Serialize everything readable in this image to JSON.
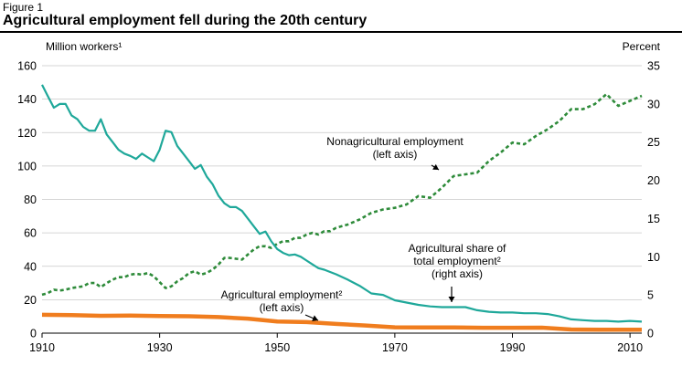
{
  "figure": {
    "label": "Figure 1",
    "title": "Agricultural employment fell during the 20th century"
  },
  "chart_data": {
    "type": "line",
    "title": "Agricultural employment fell during the 20th century",
    "ylabel_left": "Million workers¹",
    "ylabel_right": "Percent",
    "xlim": [
      1910,
      2012
    ],
    "ylim_left": [
      0,
      160
    ],
    "ylim_right": [
      0,
      35
    ],
    "x_ticks": [
      1910,
      1930,
      1950,
      1970,
      1990,
      2010
    ],
    "y_ticks_left": [
      0,
      20,
      40,
      60,
      80,
      100,
      120,
      140,
      160
    ],
    "y_ticks_right": [
      0,
      5,
      10,
      15,
      20,
      25,
      30,
      35
    ],
    "grid": "horizontal",
    "series": [
      {
        "name": "Nonagricultural employment (left axis)",
        "label_lines": [
          "Nonagricultural employment",
          "(left axis)"
        ],
        "axis": "left",
        "color": "#2e8b3a",
        "style": "dotted",
        "x": [
          1910,
          1911,
          1912,
          1913,
          1914,
          1915,
          1916,
          1917,
          1918,
          1919,
          1920,
          1921,
          1922,
          1923,
          1924,
          1925,
          1926,
          1927,
          1928,
          1929,
          1930,
          1931,
          1932,
          1933,
          1934,
          1935,
          1936,
          1937,
          1938,
          1939,
          1940,
          1941,
          1942,
          1943,
          1944,
          1945,
          1946,
          1947,
          1948,
          1949,
          1950,
          1951,
          1952,
          1953,
          1954,
          1955,
          1956,
          1957,
          1958,
          1959,
          1960,
          1962,
          1964,
          1966,
          1968,
          1970,
          1972,
          1974,
          1976,
          1978,
          1980,
          1982,
          1984,
          1986,
          1988,
          1990,
          1992,
          1994,
          1996,
          1998,
          2000,
          2002,
          2004,
          2006,
          2008,
          2010,
          2012
        ],
        "values": [
          23,
          24,
          26,
          25.5,
          26,
          27,
          27.5,
          28,
          30,
          30,
          27.5,
          30,
          32,
          33.5,
          33.5,
          35,
          35.5,
          35,
          36,
          34,
          30.5,
          27,
          28,
          31,
          33,
          36,
          37,
          35,
          36,
          38,
          41,
          45,
          45,
          44.5,
          44,
          47,
          50,
          52,
          52,
          51,
          53.5,
          55,
          55,
          57,
          57,
          59,
          60,
          59,
          61,
          61,
          63,
          65,
          68,
          72,
          74,
          75,
          77,
          82,
          81,
          87,
          94,
          95,
          96,
          103,
          108,
          114,
          113,
          118,
          122,
          127,
          134,
          134,
          137,
          143,
          136,
          139,
          142
        ]
      },
      {
        "name": "Agricultural share of total employment² (right axis)",
        "label_lines": [
          "Agricultural share of",
          "total employment²",
          "(right axis)"
        ],
        "axis": "right",
        "color": "#1fa89a",
        "style": "solid",
        "x": [
          1910,
          1911,
          1912,
          1913,
          1914,
          1915,
          1916,
          1917,
          1918,
          1919,
          1920,
          1921,
          1922,
          1923,
          1924,
          1925,
          1926,
          1927,
          1928,
          1929,
          1930,
          1931,
          1932,
          1933,
          1934,
          1935,
          1936,
          1937,
          1938,
          1939,
          1940,
          1941,
          1942,
          1943,
          1944,
          1945,
          1946,
          1947,
          1948,
          1949,
          1950,
          1951,
          1952,
          1953,
          1954,
          1955,
          1956,
          1957,
          1958,
          1959,
          1960,
          1962,
          1964,
          1966,
          1968,
          1970,
          1972,
          1974,
          1976,
          1978,
          1980,
          1982,
          1984,
          1986,
          1988,
          1990,
          1992,
          1994,
          1996,
          1998,
          2000,
          2002,
          2004,
          2006,
          2008,
          2010,
          2012
        ],
        "values": [
          32.5,
          31,
          29.5,
          30,
          30,
          28.5,
          28,
          27,
          26.5,
          26.5,
          28,
          26,
          25,
          24,
          23.5,
          23.2,
          22.8,
          23.5,
          23,
          22.5,
          24,
          26.5,
          26.3,
          24.5,
          23.5,
          22.5,
          21.5,
          22,
          20.5,
          19.5,
          18,
          17,
          16.5,
          16.5,
          16,
          15,
          14,
          13,
          13.3,
          12,
          11,
          10.5,
          10.2,
          10.3,
          10,
          9.5,
          9,
          8.5,
          8.3,
          8,
          7.7,
          7,
          6.2,
          5.2,
          5,
          4.3,
          4,
          3.7,
          3.5,
          3.4,
          3.4,
          3.4,
          3,
          2.8,
          2.7,
          2.7,
          2.6,
          2.6,
          2.5,
          2.2,
          1.8,
          1.7,
          1.6,
          1.6,
          1.5,
          1.6,
          1.5
        ]
      },
      {
        "name": "Agricultural employment² (left axis)",
        "label_lines": [
          "Agricultural employment²",
          "(left axis)"
        ],
        "axis": "left",
        "color": "#f07d1e",
        "style": "solid",
        "x": [
          1910,
          1915,
          1920,
          1925,
          1930,
          1935,
          1940,
          1945,
          1950,
          1955,
          1960,
          1965,
          1970,
          1975,
          1980,
          1985,
          1990,
          1995,
          2000,
          2005,
          2010,
          2012
        ],
        "values": [
          11,
          10.8,
          10.4,
          10.5,
          10.2,
          10.1,
          9.6,
          8.7,
          7,
          6.6,
          5.5,
          4.6,
          3.5,
          3.4,
          3.4,
          3.2,
          3.2,
          3.3,
          2.2,
          2.1,
          2.1,
          2.1
        ]
      }
    ]
  }
}
